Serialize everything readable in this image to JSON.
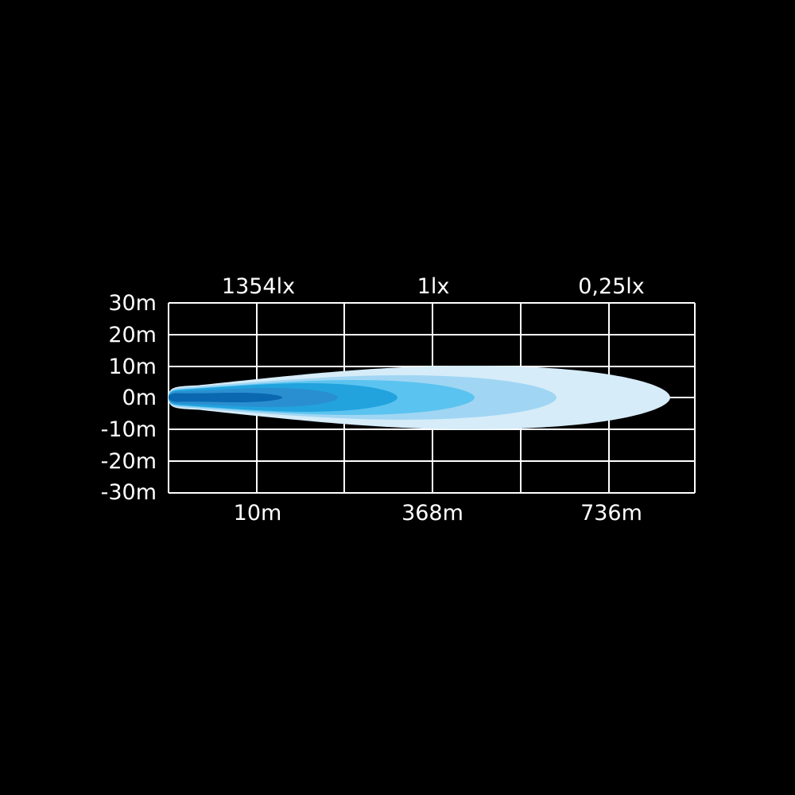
{
  "chart_data": {
    "type": "area",
    "title": "",
    "top_labels": [
      "1354lx",
      "1lx",
      "0,25lx"
    ],
    "y_tick_labels": [
      "30m",
      "20m",
      "10m",
      "0m",
      "-10m",
      "-20m",
      "-30m"
    ],
    "x_tick_labels": [
      "10m",
      "368m",
      "736m"
    ],
    "ylim": [
      -30,
      30
    ],
    "grid": true,
    "contour_colors": [
      "#d6ecf9",
      "#a0d6f3",
      "#5bc3ef",
      "#22a3de",
      "#2a8fd0",
      "#0a68b0"
    ],
    "grid_color": "#ffffff",
    "background": "#000000"
  }
}
